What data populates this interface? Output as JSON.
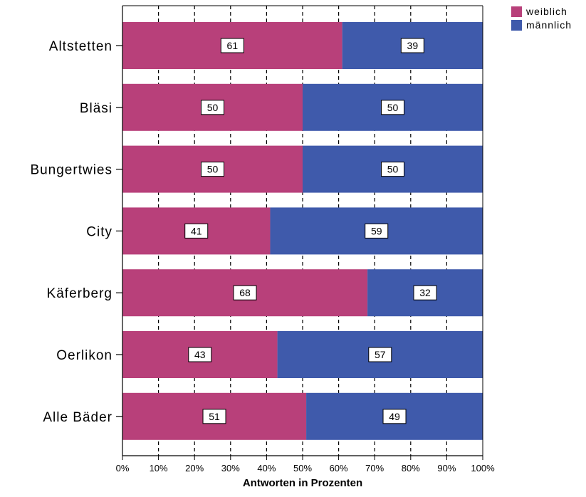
{
  "chart_data": {
    "type": "bar",
    "orientation": "horizontal",
    "stacked": true,
    "percent_stacked": true,
    "categories": [
      "Altstetten",
      "Bläsi",
      "Bungertwies",
      "City",
      "Käferberg",
      "Oerlikon",
      "Alle Bäder"
    ],
    "series": [
      {
        "name": "weiblich",
        "values": [
          61,
          50,
          50,
          41,
          68,
          43,
          51
        ],
        "color": "#b8407a"
      },
      {
        "name": "männlich",
        "values": [
          39,
          50,
          50,
          59,
          32,
          57,
          49
        ],
        "color": "#3f5aab"
      }
    ],
    "xlabel": "Antworten in Prozenten",
    "ylabel": "",
    "xlim": [
      0,
      100
    ],
    "xticks": [
      "0%",
      "10%",
      "20%",
      "30%",
      "40%",
      "50%",
      "60%",
      "70%",
      "80%",
      "90%",
      "100%"
    ],
    "grid": "vertical dashed",
    "legend_position": "top-right",
    "data_labels": true
  }
}
